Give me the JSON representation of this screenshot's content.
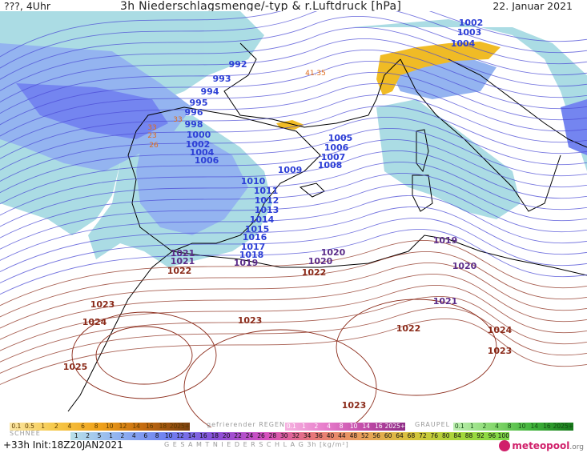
{
  "header": {
    "left": "???, 4Uhr",
    "title": "3h Niederschlagsmenge/-typ & r.Luftdruck [hPa]",
    "date": "22. Januar 2021"
  },
  "map": {
    "colors": {
      "sea": "#ffffff",
      "rain_light": "#a7dbe3",
      "rain_medium": "#8fb1f0",
      "rain_heavy": "#6d7ff0",
      "snow": "#f0b81a",
      "isobar_low": "#4b4bd6",
      "isobar_high": "#8b2b1a",
      "coast": "#000000"
    },
    "isobar_labels_low": [
      "992",
      "993",
      "994",
      "995",
      "996",
      "998",
      "1000",
      "1002",
      "1004",
      "1006",
      "1002",
      "1003",
      "1004",
      "1005",
      "1006",
      "1007",
      "1008",
      "1009",
      "1010",
      "1011",
      "1012",
      "1013",
      "1014",
      "1015",
      "1016",
      "1017",
      "1018"
    ],
    "isobar_labels_mid": [
      "1019",
      "1020",
      "1021",
      "1020",
      "1021",
      "1019",
      "1020",
      "1021"
    ],
    "isobar_labels_high": [
      "1022",
      "1022",
      "1023",
      "1024",
      "1025",
      "1023",
      "1022",
      "1023",
      "1024",
      "1023"
    ],
    "precip_labels": [
      "33",
      "23",
      "26",
      "41.35",
      "33"
    ]
  },
  "legend": {
    "snow_label": "SCHNEE",
    "snow_scale": [
      "0.1",
      "0.5",
      "1",
      "2",
      "4",
      "6",
      "8",
      "10",
      "12",
      "14",
      "16",
      "18",
      "2025+"
    ],
    "freezing_label": "gefrierender REGEN",
    "freezing_scale": [
      "0.1",
      "1",
      "2",
      "4",
      "8",
      "10",
      "14",
      "16",
      "2025+"
    ],
    "graupel_label": "GRAUPEL",
    "graupel_scale": [
      "0.1",
      "1",
      "2",
      "4",
      "8",
      "10",
      "14",
      "16",
      "2025+"
    ],
    "total_scale": [
      "1",
      "2",
      "5",
      "1",
      "2",
      "4",
      "6",
      "8",
      "10",
      "12",
      "14",
      "16",
      "18",
      "20",
      "22",
      "24",
      "26",
      "28",
      "30",
      "32",
      "34",
      "36",
      "40",
      "44",
      "48",
      "52",
      "56",
      "60",
      "64",
      "68",
      "72",
      "76",
      "80",
      "84",
      "88",
      "92",
      "96",
      "100"
    ],
    "total_label": "G E S A M T N I E D E R S C H L A G   3h  [kg/m²]"
  },
  "footer": {
    "run": "+33h  Init:18Z20JAN2021",
    "logo": "meteopool",
    "logo_suffix": ".org"
  }
}
